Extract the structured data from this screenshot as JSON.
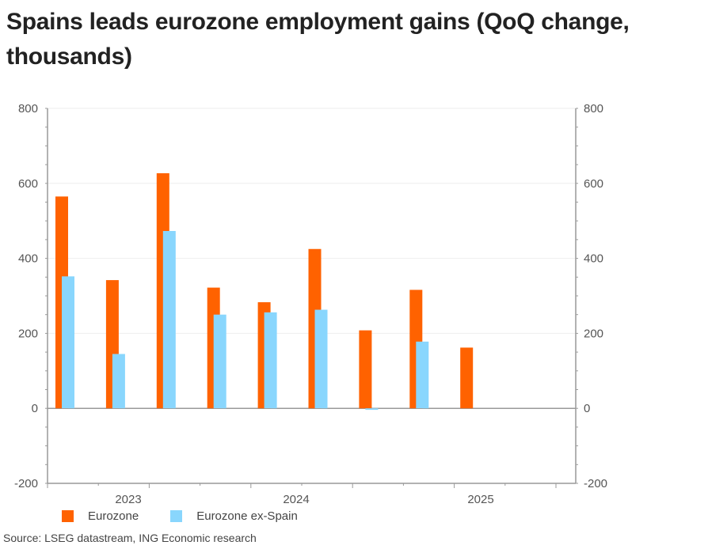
{
  "chart_data": {
    "type": "bar",
    "title": "Spains leads eurozone employment gains (QoQ change, thousands)",
    "x_tick_labels": [
      "2023",
      "2024",
      "2025"
    ],
    "ylim": [
      -200,
      800
    ],
    "yticks": [
      -200,
      0,
      200,
      400,
      600,
      800
    ],
    "secondary_yticks": [
      -200,
      0,
      200,
      400,
      600,
      800
    ],
    "grid": true,
    "legend_position": "bottom",
    "series": [
      {
        "name": "Eurozone",
        "color": "#FF6200",
        "values": [
          565,
          342,
          627,
          322,
          283,
          425,
          208,
          316,
          162
        ]
      },
      {
        "name": "Eurozone ex-Spain",
        "color": "#89D6FD",
        "values": [
          352,
          145,
          473,
          250,
          256,
          263,
          -4,
          178,
          null
        ]
      }
    ],
    "source": "Source: LSEG datastream, ING Economic research"
  }
}
